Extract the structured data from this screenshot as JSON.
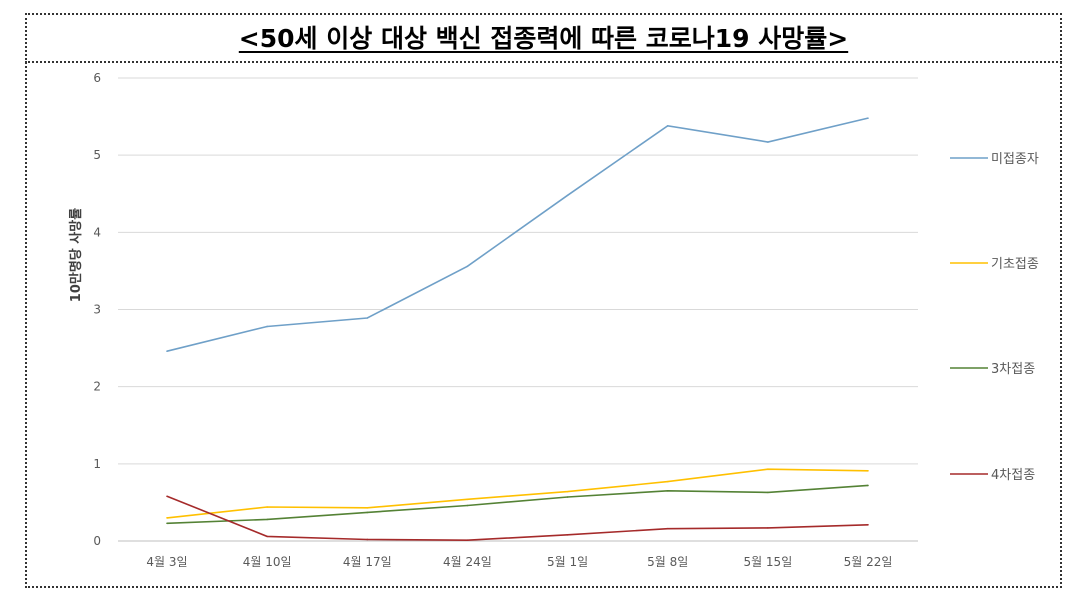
{
  "chart_data": {
    "type": "line",
    "title": "<50세 이상 대상 백신 접종력에 따른 코로나19 사망률>",
    "ylabel": "10만명당 사망률",
    "xlabel": "",
    "ylim": [
      0,
      6
    ],
    "yticks": [
      0,
      1,
      2,
      3,
      4,
      5,
      6
    ],
    "grid": true,
    "legend_position": "right",
    "categories": [
      "4월 3일",
      "4월 10일",
      "4월 17일",
      "4월 24일",
      "5월 1일",
      "5월 8일",
      "5월 15일",
      "5월 22일"
    ],
    "series": [
      {
        "name": "미접종자",
        "color": "#6fa0c8",
        "values": [
          2.46,
          2.78,
          2.89,
          3.56,
          4.48,
          5.38,
          5.17,
          5.48
        ]
      },
      {
        "name": "기초접종",
        "color": "#ffc000",
        "values": [
          0.3,
          0.44,
          0.43,
          0.54,
          0.64,
          0.77,
          0.93,
          0.91
        ]
      },
      {
        "name": "3차접종",
        "color": "#548235",
        "values": [
          0.23,
          0.28,
          0.37,
          0.46,
          0.57,
          0.65,
          0.63,
          0.72
        ]
      },
      {
        "name": "4차접종",
        "color": "#a52a2a",
        "values": [
          0.58,
          0.06,
          0.02,
          0.01,
          0.08,
          0.16,
          0.17,
          0.21
        ]
      }
    ]
  }
}
